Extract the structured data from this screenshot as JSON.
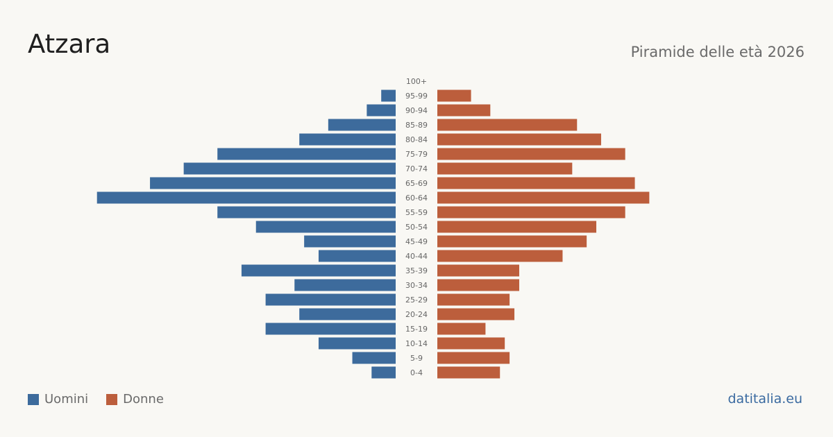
{
  "header": {
    "title": "Atzara",
    "subtitle": "Piramide delle età 2026"
  },
  "legend": {
    "men_label": "Uomini",
    "women_label": "Donne"
  },
  "source": "datitalia.eu",
  "colors": {
    "men": "#3d6b9c",
    "women": "#bc5e3c"
  },
  "chart_data": {
    "type": "bar",
    "orientation": "horizontal-pyramid",
    "categories": [
      "100+",
      "95-99",
      "90-94",
      "85-89",
      "80-84",
      "75-79",
      "70-74",
      "65-69",
      "60-64",
      "55-59",
      "50-54",
      "45-49",
      "40-44",
      "35-39",
      "30-34",
      "25-29",
      "20-24",
      "15-19",
      "10-14",
      "5-9",
      "0-4"
    ],
    "series": [
      {
        "name": "Uomini",
        "values": [
          0,
          3,
          6,
          14,
          20,
          37,
          44,
          51,
          62,
          37,
          29,
          19,
          16,
          32,
          21,
          27,
          20,
          27,
          16,
          9,
          5
        ]
      },
      {
        "name": "Donne",
        "values": [
          0,
          7,
          11,
          29,
          34,
          39,
          28,
          41,
          44,
          39,
          33,
          31,
          26,
          17,
          17,
          15,
          16,
          10,
          14,
          15,
          13
        ]
      }
    ],
    "legend_position": "bottom-left",
    "grid": false
  }
}
